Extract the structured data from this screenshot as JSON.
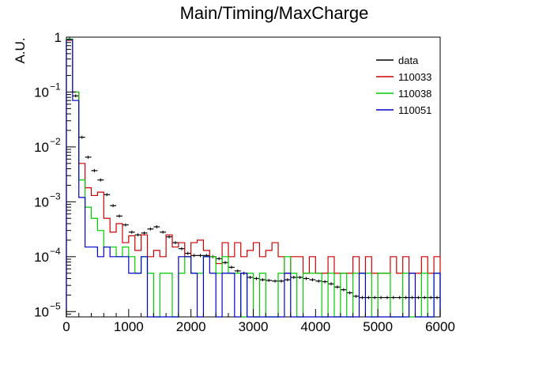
{
  "chart_data": {
    "type": "line",
    "title": "Main/Timing/MaxCharge",
    "xlabel": "",
    "ylabel": "A.U.",
    "xlim": [
      0,
      6000
    ],
    "ylim": [
      8e-06,
      1
    ],
    "yscale": "log",
    "grid": false,
    "legend_position": "top-right",
    "x_ticks": [
      "0",
      "1000",
      "2000",
      "3000",
      "4000",
      "5000",
      "6000"
    ],
    "y_ticks": [
      {
        "value": 1,
        "base": "1",
        "exp": ""
      },
      {
        "value": 0.1,
        "base": "10",
        "exp": "−1"
      },
      {
        "value": 0.01,
        "base": "10",
        "exp": "−2"
      },
      {
        "value": 0.001,
        "base": "10",
        "exp": "−3"
      },
      {
        "value": 0.0001,
        "base": "10",
        "exp": "−4"
      },
      {
        "value": 1e-05,
        "base": "10",
        "exp": "−5"
      }
    ],
    "bin_width": 100,
    "series": [
      {
        "name": "data",
        "color": "#000000",
        "style": "errorbars",
        "x": [
          50,
          150,
          250,
          350,
          450,
          550,
          650,
          750,
          850,
          950,
          1050,
          1150,
          1250,
          1350,
          1450,
          1550,
          1650,
          1750,
          1850,
          1950,
          2050,
          2150,
          2250,
          2350,
          2450,
          2550,
          2650,
          2750,
          2850,
          2950,
          3050,
          3150,
          3250,
          3350,
          3450,
          3550,
          3650,
          3750,
          3850,
          3950,
          4050,
          4150,
          4250,
          4350,
          4450,
          4550,
          4650,
          4750,
          4850,
          4950,
          5050,
          5150,
          5250,
          5350,
          5450,
          5550,
          5650,
          5750,
          5850,
          5950
        ],
        "values": [
          0.92,
          0.085,
          0.015,
          0.0065,
          0.0037,
          0.0025,
          0.00135,
          0.00085,
          0.00055,
          0.00038,
          0.00028,
          0.00025,
          0.00027,
          0.00032,
          0.00035,
          0.00028,
          0.00023,
          0.00018,
          0.00014,
          0.000115,
          0.000105,
          0.000105,
          0.000105,
          0.0001,
          9.2e-05,
          7.8e-05,
          6.4e-05,
          5.5e-05,
          5e-05,
          4.2e-05,
          4e-05,
          3.8e-05,
          3.7e-05,
          3.6e-05,
          3.6e-05,
          3.8e-05,
          4.2e-05,
          4.2e-05,
          4e-05,
          3.8e-05,
          3.6e-05,
          3.5e-05,
          3.2e-05,
          2.8e-05,
          2.5e-05,
          2.2e-05,
          1.9e-05,
          1.8e-05,
          1.8e-05,
          1.8e-05,
          1.8e-05,
          1.8e-05,
          1.8e-05,
          1.8e-05,
          1.8e-05,
          1.8e-05,
          1.8e-05,
          1.8e-05,
          1.8e-05,
          1.8e-05
        ]
      },
      {
        "name": "110033",
        "color": "#cc0000",
        "style": "step",
        "x": [
          50,
          150,
          250,
          350,
          450,
          550,
          650,
          750,
          850,
          950,
          1050,
          1150,
          1250,
          1350,
          1450,
          1550,
          1650,
          1750,
          1850,
          1950,
          2050,
          2150,
          2250,
          2350,
          2450,
          2550,
          2650,
          2750,
          2850,
          2950,
          3050,
          3150,
          3250,
          3350,
          3450,
          3550,
          3650,
          3750,
          3850,
          3950,
          4050,
          4150,
          4250,
          4350,
          4450,
          4550,
          4650,
          4750,
          4850,
          4950,
          5050,
          5150,
          5250,
          5350,
          5450,
          5550,
          5650,
          5750,
          5850,
          5950
        ],
        "values": [
          0.88,
          0.1,
          0.005,
          0.0018,
          0.0013,
          0.0015,
          0.0005,
          0.00028,
          0.0004,
          0.00018,
          0.00024,
          0.00013,
          0.00025,
          0.0001,
          0.00013,
          0.0001,
          0.00025,
          0.00015,
          0.00018,
          0.0001,
          0.00018,
          0.0002,
          0.00013,
          0.0001,
          7.5e-05,
          0.00018,
          0.0001,
          0.00018,
          0.0001,
          0.00013,
          0.00018,
          0.0001,
          0.00013,
          0.00018,
          0.0001,
          5e-05,
          0.0001,
          0.0001,
          5e-05,
          0.0001,
          5e-05,
          5e-05,
          0.0001,
          5e-05,
          5e-05,
          5e-05,
          0.0001,
          5e-05,
          0.0001,
          5e-05,
          5e-05,
          5e-05,
          0.0001,
          5e-05,
          0.0001,
          5e-05,
          5e-05,
          0.0001,
          5e-05,
          0.0001
        ]
      },
      {
        "name": "110038",
        "color": "#00cc00",
        "style": "step",
        "x": [
          50,
          150,
          250,
          350,
          450,
          550,
          650,
          750,
          850,
          950,
          1050,
          1150,
          1250,
          1350,
          1450,
          1550,
          1650,
          1750,
          1850,
          1950,
          2050,
          2150,
          2250,
          2350,
          2450,
          2550,
          2650,
          2750,
          2850,
          2950,
          3050,
          3150,
          3250,
          3350,
          3450,
          3550,
          3650,
          3750,
          3850,
          3950,
          4050,
          4150,
          4250,
          4350,
          4450,
          4550,
          4650,
          4750,
          4850,
          4950,
          5050,
          5150,
          5250,
          5350,
          5450,
          5550,
          5650,
          5750,
          5850,
          5950
        ],
        "values": [
          0.92,
          0.1,
          0.0025,
          0.0008,
          0.0005,
          0.0003,
          0.00015,
          0.00015,
          0.0001,
          0.00015,
          0.0001,
          5e-05,
          0.0001,
          5e-05,
          8e-06,
          5e-05,
          5e-05,
          8e-06,
          5e-05,
          0.0001,
          5e-05,
          5e-05,
          0.0001,
          0.0001,
          5e-05,
          0.0001,
          5e-05,
          5e-05,
          8e-06,
          5e-05,
          8e-06,
          5e-05,
          8e-06,
          8e-06,
          5e-05,
          0.0001,
          5e-05,
          8e-06,
          5e-05,
          5e-05,
          5e-05,
          8e-06,
          5e-05,
          8e-06,
          5e-05,
          8e-06,
          5e-05,
          5e-05,
          5e-05,
          8e-06,
          5e-05,
          5e-05,
          8e-06,
          8e-06,
          5e-05,
          8e-06,
          8e-06,
          5e-05,
          8e-06,
          5e-05
        ]
      },
      {
        "name": "110051",
        "color": "#0000cc",
        "style": "step",
        "x": [
          50,
          150,
          250,
          350,
          450,
          550,
          650,
          750,
          850,
          950,
          1050,
          1150,
          1250,
          1350,
          1450,
          1550,
          1650,
          1750,
          1850,
          1950,
          2050,
          2150,
          2250,
          2350,
          2450,
          2550,
          2650,
          2750,
          2850,
          2950,
          3050,
          3150,
          3250,
          3350,
          3450,
          3550,
          3650,
          3750,
          3850,
          3950,
          4050,
          4150,
          4250,
          4350,
          4450,
          4550,
          4650,
          4750,
          4850,
          4950,
          5050,
          5150,
          5250,
          5350,
          5450,
          5550,
          5650,
          5750,
          5850,
          5950
        ],
        "values": [
          0.9,
          0.07,
          0.0012,
          0.00015,
          0.00015,
          0.0001,
          0.00015,
          0.0001,
          0.0001,
          0.0001,
          5e-05,
          5e-05,
          0.0001,
          8e-06,
          8e-06,
          8e-06,
          8e-06,
          8e-06,
          0.0001,
          0.0001,
          5e-05,
          8e-06,
          0.0001,
          5e-05,
          8e-06,
          5e-05,
          5e-05,
          8e-06,
          5e-05,
          8e-06,
          8e-06,
          8e-06,
          8e-06,
          8e-06,
          8e-06,
          5e-05,
          8e-06,
          8e-06,
          8e-06,
          8e-06,
          8e-06,
          8e-06,
          8e-06,
          8e-06,
          8e-06,
          8e-06,
          8e-06,
          5e-05,
          8e-06,
          8e-06,
          8e-06,
          8e-06,
          8e-06,
          8e-06,
          8e-06,
          5e-05,
          8e-06,
          8e-06,
          8e-06,
          5e-05
        ]
      }
    ]
  }
}
